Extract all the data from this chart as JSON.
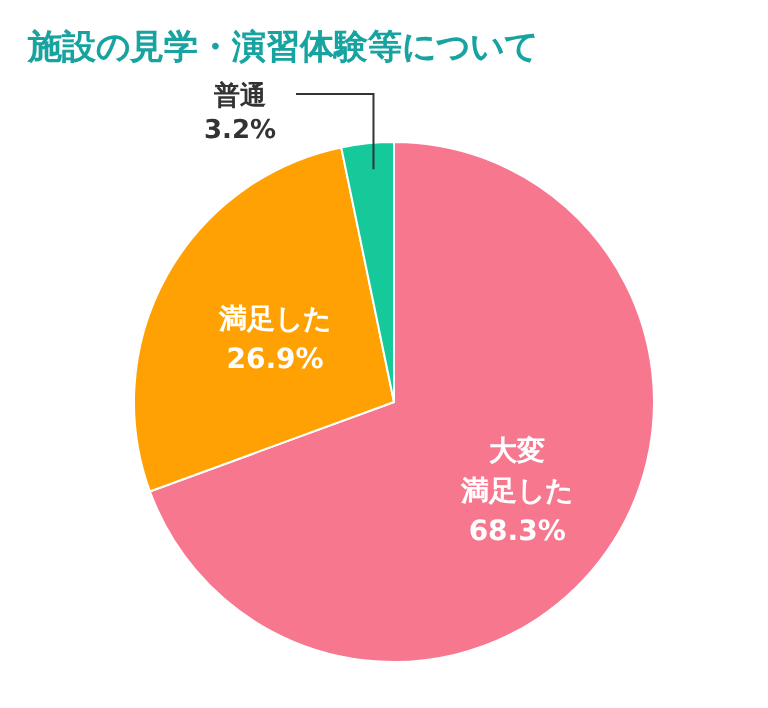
{
  "chart_data": {
    "type": "pie",
    "title": "施設の見学・演習体験等について",
    "categories": [
      "大変満足した",
      "満足した",
      "普通"
    ],
    "values": [
      68.3,
      26.9,
      3.2
    ],
    "colors": [
      "#f7778f",
      "#ffa102",
      "#16c99b"
    ],
    "value_labels": [
      "68.3%",
      "26.9%",
      "3.2%"
    ],
    "legend": false
  }
}
